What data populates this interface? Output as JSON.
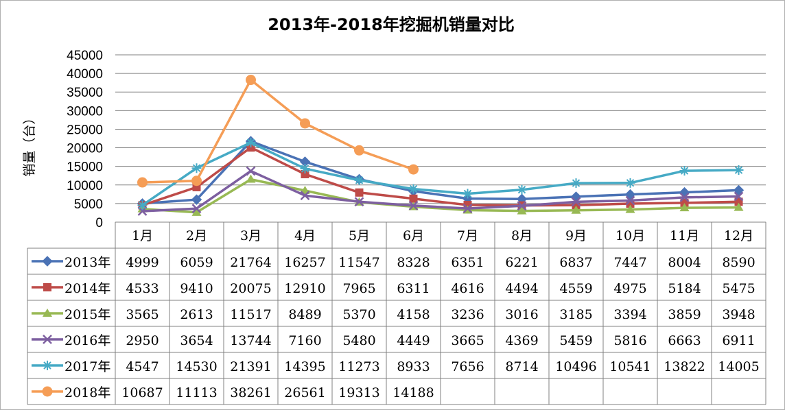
{
  "chart_data": {
    "type": "line",
    "title": "2013年-2018年挖掘机销量对比",
    "ylabel": "销量（台）",
    "xlabel": "",
    "ylim": [
      0,
      45000
    ],
    "yticks": [
      0,
      5000,
      10000,
      15000,
      20000,
      25000,
      30000,
      35000,
      40000,
      45000
    ],
    "grid": true,
    "legend": "data-table-left",
    "categories": [
      "1月",
      "2月",
      "3月",
      "4月",
      "5月",
      "6月",
      "7月",
      "8月",
      "9月",
      "10月",
      "11月",
      "12月"
    ],
    "series": [
      {
        "name": "2013年",
        "color": "#4A72B5",
        "marker": "diamond",
        "values": [
          4999,
          6059,
          21764,
          16257,
          11547,
          8328,
          6351,
          6221,
          6837,
          7447,
          8004,
          8590
        ]
      },
      {
        "name": "2014年",
        "color": "#BE4B48",
        "marker": "square",
        "values": [
          4533,
          9410,
          20075,
          12910,
          7965,
          6311,
          4616,
          4494,
          4559,
          4975,
          5184,
          5475
        ]
      },
      {
        "name": "2015年",
        "color": "#98B954",
        "marker": "triangle",
        "values": [
          3565,
          2613,
          11517,
          8489,
          5370,
          4158,
          3236,
          3016,
          3185,
          3394,
          3859,
          3948
        ]
      },
      {
        "name": "2016年",
        "color": "#7D5FA0",
        "marker": "x",
        "values": [
          2950,
          3654,
          13744,
          7160,
          5480,
          4449,
          3665,
          4369,
          5459,
          5816,
          6663,
          6911
        ]
      },
      {
        "name": "2017年",
        "color": "#46AAC5",
        "marker": "star",
        "values": [
          4547,
          14530,
          21391,
          14395,
          11273,
          8933,
          7656,
          8714,
          10496,
          10541,
          13822,
          14005
        ]
      },
      {
        "name": "2018年",
        "color": "#F59D56",
        "marker": "circle",
        "values": [
          10687,
          11113,
          38261,
          26561,
          19313,
          14188,
          null,
          null,
          null,
          null,
          null,
          null
        ]
      }
    ]
  }
}
